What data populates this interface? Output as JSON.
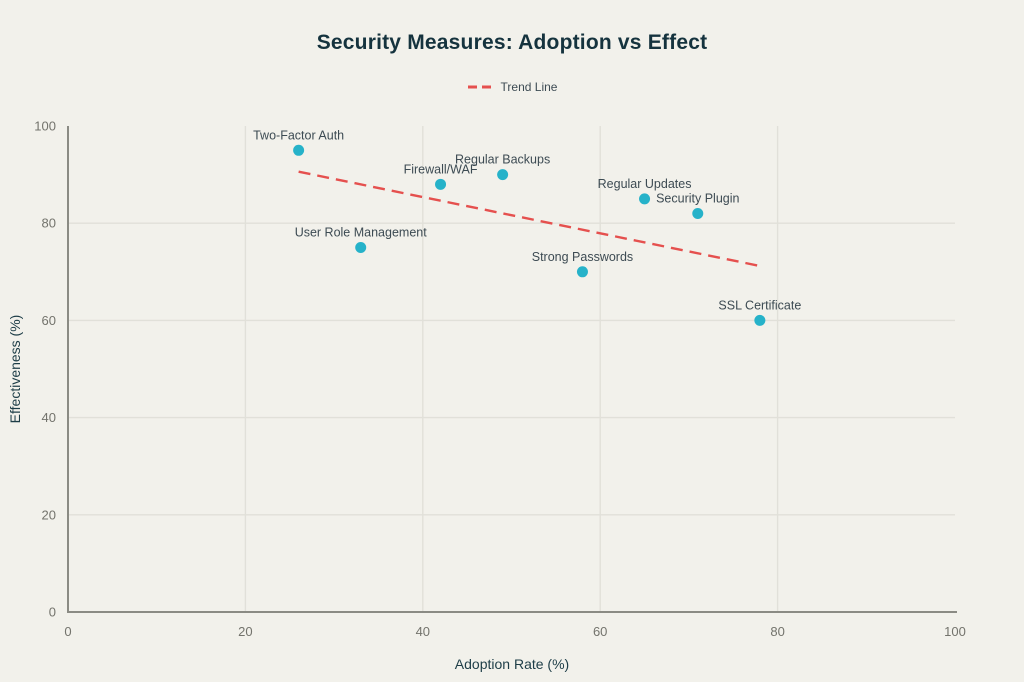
{
  "chart_data": {
    "type": "scatter",
    "title": "Security Measures: Adoption vs Effect",
    "legend": {
      "label": "Trend Line"
    },
    "xlabel": "Adoption Rate (%)",
    "ylabel": "Effectiveness (%)",
    "xlim": [
      0,
      100
    ],
    "ylim": [
      0,
      100
    ],
    "x_ticks": [
      0,
      20,
      40,
      60,
      80,
      100
    ],
    "y_ticks": [
      0,
      20,
      40,
      60,
      80,
      100
    ],
    "grid": true,
    "legend_position": "top-center",
    "points": [
      {
        "label": "Two-Factor Auth",
        "x": 26,
        "y": 95
      },
      {
        "label": "User Role Management",
        "x": 33,
        "y": 75
      },
      {
        "label": "Firewall/WAF",
        "x": 42,
        "y": 88
      },
      {
        "label": "Regular Backups",
        "x": 49,
        "y": 90
      },
      {
        "label": "Strong Passwords",
        "x": 58,
        "y": 70
      },
      {
        "label": "Regular Updates",
        "x": 65,
        "y": 85
      },
      {
        "label": "Security Plugin",
        "x": 71,
        "y": 82
      },
      {
        "label": "SSL Certificate",
        "x": 78,
        "y": 60
      }
    ],
    "trend_line": {
      "x1": 26,
      "y1": 90.6,
      "x2": 78,
      "y2": 71.2
    },
    "colors": {
      "point": "#26b2c9",
      "trend": "#e5504e",
      "title": "#15333e",
      "point_label": "#3d4b53",
      "tick_label": "#73736c",
      "grid": "#e1e0d9",
      "axis": "#8b8b84",
      "background": "#f2f1eb"
    }
  }
}
